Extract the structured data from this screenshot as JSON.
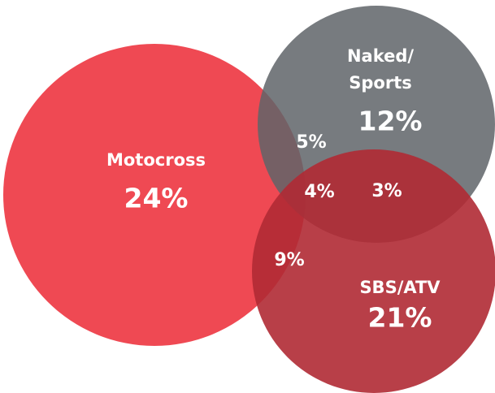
{
  "sets": [
    {
      "label_lines": [
        "Motocross"
      ],
      "value": "24%"
    },
    {
      "label_lines": [
        "Naked/",
        "Sports"
      ],
      "value": "12%"
    },
    {
      "label_lines": [
        "SBS/ATV"
      ],
      "value": "21%"
    }
  ],
  "overlaps": [
    "5%",
    "4%",
    "3%",
    "9%"
  ]
}
